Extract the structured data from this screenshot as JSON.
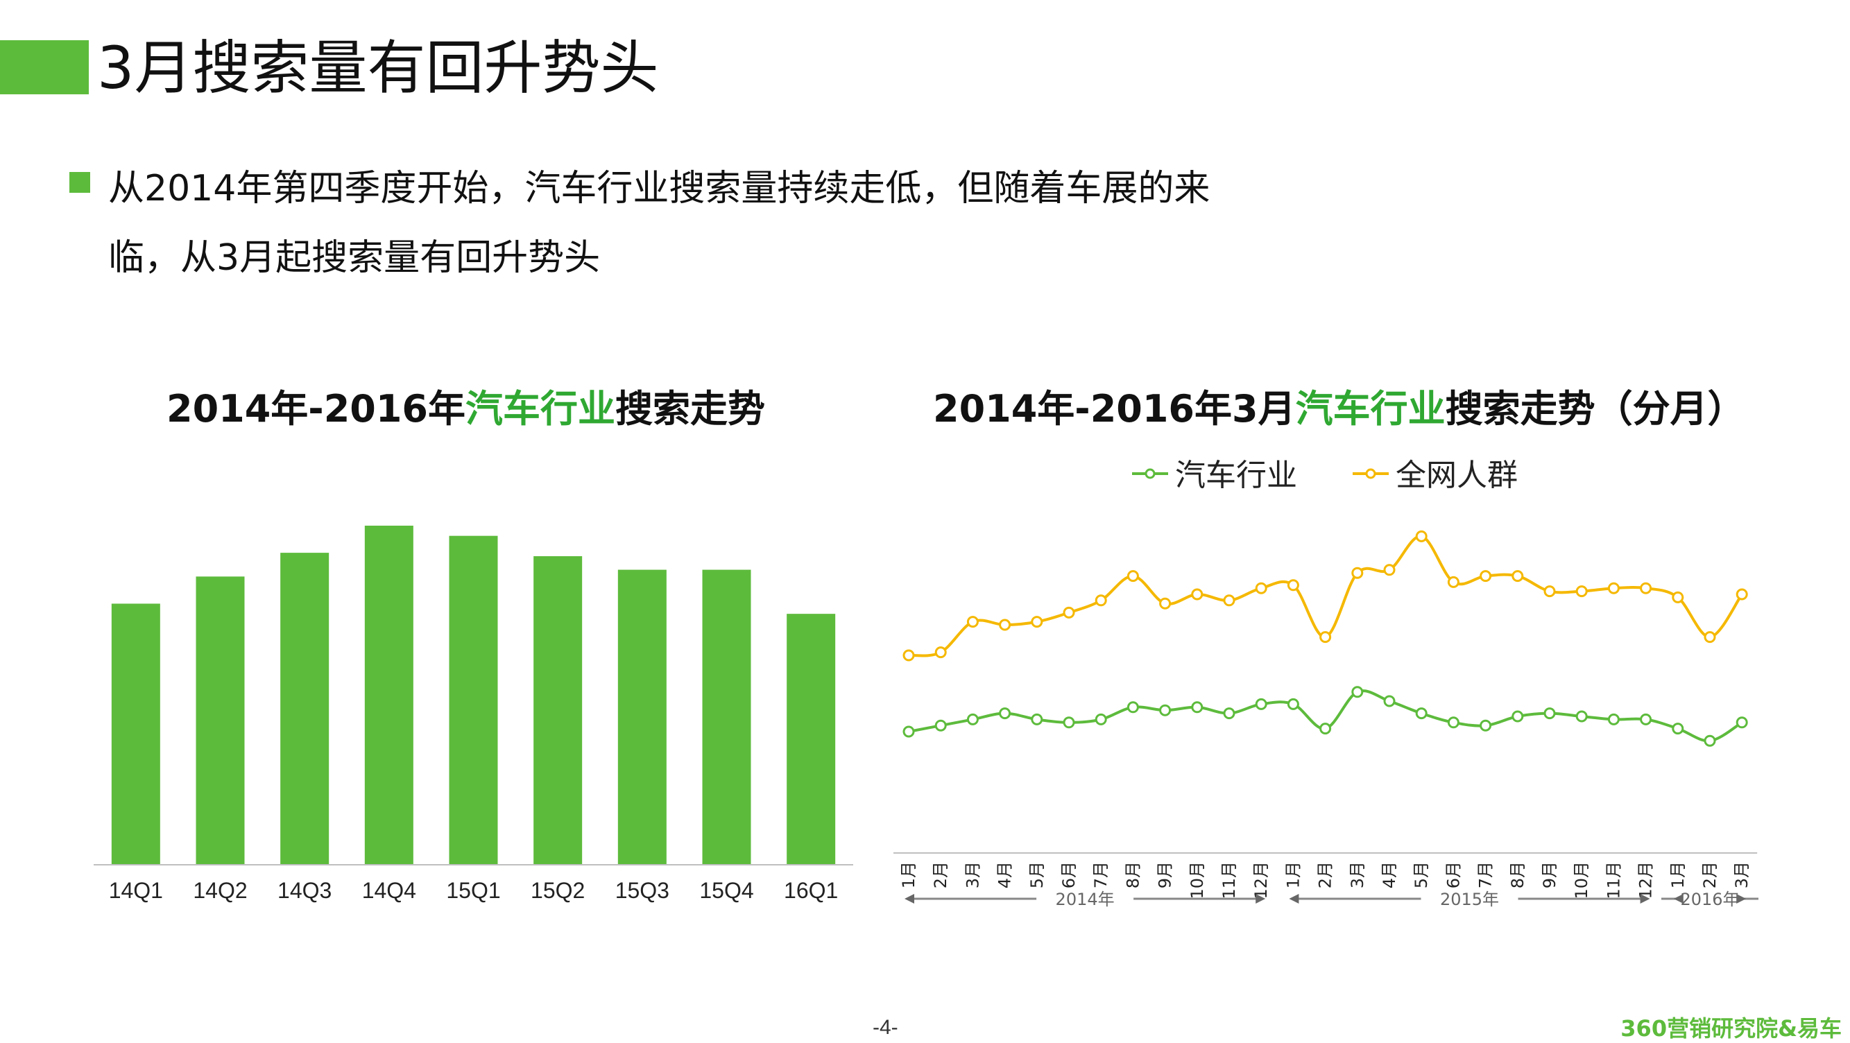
{
  "page": {
    "title": "3月搜索量有回升势头",
    "bullet_line1": "从2014年第四季度开始，汽车行业搜索量持续走低，但随着车展的来",
    "bullet_line2": "临，从3月起搜索量有回升势头",
    "page_number": "-4-",
    "brand": "360营销研究院&易车",
    "accent_color": "#5dbb3c"
  },
  "chart_data": [
    {
      "type": "bar",
      "title_prefix": "2014年-2016年",
      "title_highlight": "汽车行业",
      "title_suffix": "搜索走势",
      "categories": [
        "14Q1",
        "14Q2",
        "14Q3",
        "14Q4",
        "15Q1",
        "15Q2",
        "15Q3",
        "15Q4",
        "16Q1"
      ],
      "values": [
        77,
        85,
        92,
        100,
        97,
        91,
        87,
        87,
        74
      ],
      "ylim": [
        0,
        100
      ],
      "color": "#5dbb3c",
      "grid": false
    },
    {
      "type": "line",
      "title_prefix": "2014年-2016年3月",
      "title_highlight": "汽车行业",
      "title_suffix": "搜索走势（分月）",
      "legend_position": "top",
      "x": [
        "1月",
        "2月",
        "3月",
        "4月",
        "5月",
        "6月",
        "7月",
        "8月",
        "9月",
        "10月",
        "11月",
        "12月",
        "1月",
        "2月",
        "3月",
        "4月",
        "5月",
        "6月",
        "7月",
        "8月",
        "9月",
        "10月",
        "11月",
        "12月",
        "1月",
        "2月",
        "3月"
      ],
      "series": [
        {
          "name": "汽车行业",
          "color": "#5dbb3c",
          "values": [
            25,
            27,
            29,
            31,
            29,
            28,
            29,
            33,
            32,
            33,
            31,
            34,
            34,
            26,
            38,
            35,
            31,
            28,
            27,
            30,
            31,
            30,
            29,
            29,
            26,
            22,
            28
          ]
        },
        {
          "name": "全网人群",
          "color": "#f5b800",
          "values": [
            50,
            51,
            61,
            60,
            61,
            64,
            68,
            76,
            67,
            70,
            68,
            72,
            73,
            56,
            77,
            78,
            89,
            74,
            76,
            76,
            71,
            71,
            72,
            72,
            69,
            56,
            70
          ]
        }
      ],
      "ylim": [
        0,
        100
      ],
      "year_groups": [
        {
          "label": "2014年",
          "from": 0,
          "to": 11
        },
        {
          "label": "2015年",
          "from": 12,
          "to": 23
        },
        {
          "label": "2016年",
          "from": 24,
          "to": 26
        }
      ],
      "grid": false
    }
  ]
}
